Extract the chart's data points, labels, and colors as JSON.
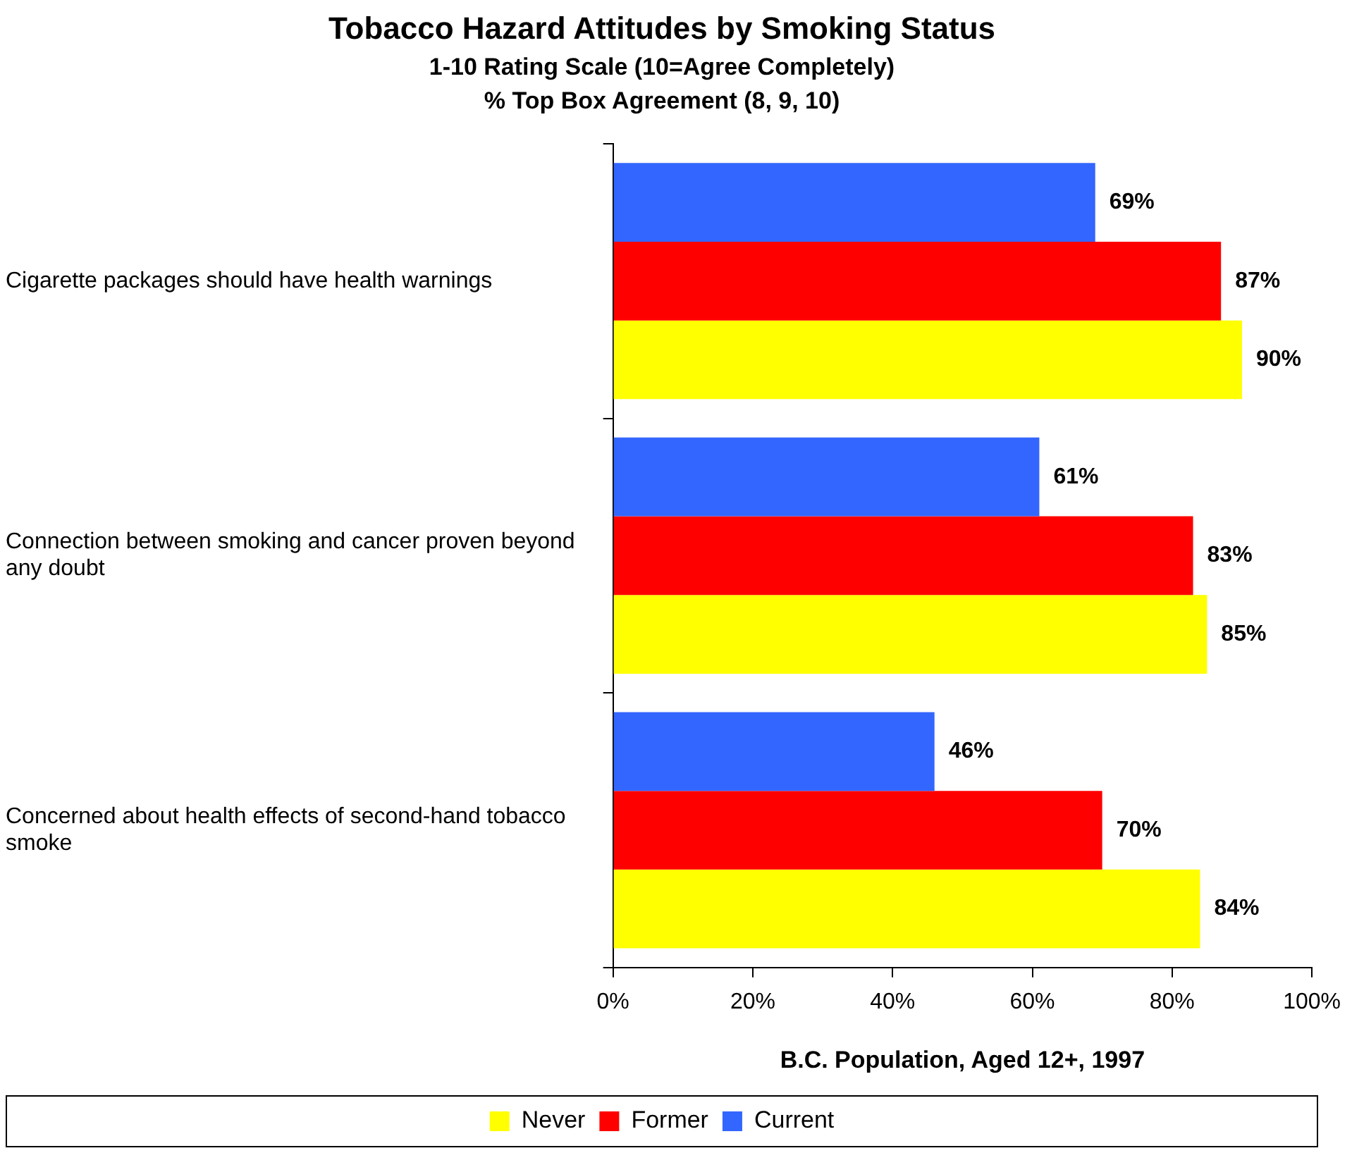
{
  "chart_data": {
    "type": "bar",
    "orientation": "horizontal",
    "title": "Tobacco Hazard Attitudes by Smoking Status",
    "subtitle": "1-10 Rating Scale (10=Agree Completely)\n% Top Box Agreement (8, 9, 10)",
    "xlabel": "B.C. Population, Aged 12+, 1997",
    "categories": [
      "Cigarette packages should have health warnings",
      "Connection between smoking and cancer proven beyond any doubt",
      "Concerned about health effects of second-hand tobacco smoke"
    ],
    "series": [
      {
        "name": "Current",
        "color": "#3366ff",
        "values": [
          69,
          61,
          46
        ],
        "value_labels": [
          "69%",
          "61%",
          "46%"
        ]
      },
      {
        "name": "Former",
        "color": "#ff0000",
        "values": [
          87,
          83,
          70
        ],
        "value_labels": [
          "87%",
          "83%",
          "70%"
        ]
      },
      {
        "name": "Never",
        "color": "#ffff00",
        "values": [
          90,
          85,
          84
        ],
        "value_labels": [
          "90%",
          "85%",
          "84%"
        ]
      }
    ],
    "xlim": [
      0,
      100
    ],
    "xticks": [
      {
        "value": 0,
        "label": "0%"
      },
      {
        "value": 20,
        "label": "20%"
      },
      {
        "value": 40,
        "label": "40%"
      },
      {
        "value": 60,
        "label": "60%"
      },
      {
        "value": 80,
        "label": "80%"
      },
      {
        "value": 100,
        "label": "100%"
      }
    ],
    "grid": false,
    "legend": "bottom"
  }
}
